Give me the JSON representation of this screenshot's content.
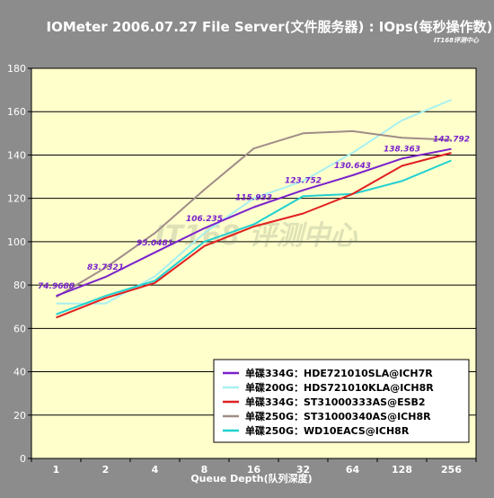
{
  "chart_data": {
    "type": "line",
    "title": "IOMeter 2006.07.27 File Server(文件服务器) : IOps(每秒操作数)",
    "xlabel": "Queue Depth(队列深度)",
    "ylabel": "",
    "categories": [
      "1",
      "2",
      "4",
      "8",
      "16",
      "32",
      "64",
      "128",
      "256"
    ],
    "ylim": [
      0,
      180
    ],
    "yticks": [
      0,
      20,
      40,
      60,
      80,
      100,
      120,
      140,
      160,
      180
    ],
    "grid": "horizontal",
    "legend_position": "bottom-right",
    "series": [
      {
        "name": "单碟334G：HDE721010SLA@ICH7R",
        "color": "#7a22cc",
        "values": [
          74.9688,
          83.7321,
          95.0481,
          106.235,
          115.933,
          123.752,
          130.643,
          138.363,
          142.792
        ]
      },
      {
        "name": "单碟200G：HDS721010KLA@ICH8R",
        "color": "#a8f0f0",
        "values": [
          71.5,
          71.5,
          84,
          104,
          120,
          128,
          141,
          156,
          165.5
        ]
      },
      {
        "name": "单碟334G：ST31000333AS@ESB2",
        "color": "#e02020",
        "values": [
          65,
          74,
          81,
          98,
          107,
          113,
          122,
          135,
          141
        ]
      },
      {
        "name": "单碟250G：ST31000340AS@ICH8R",
        "color": "#a08c88",
        "values": [
          74.5,
          88,
          104,
          124,
          143,
          150,
          151,
          148,
          147
        ]
      },
      {
        "name": "单碟250G：WD10EACS@ICH8R",
        "color": "#20d0d0",
        "values": [
          66.5,
          75,
          82,
          100,
          108,
          121,
          122,
          128,
          137.5
        ]
      }
    ],
    "data_labels": {
      "series_index": 0,
      "texts": [
        "74.9688",
        "83.7321",
        "95.0481",
        "106.235",
        "115.933",
        "123.752",
        "130.643",
        "138.363",
        "142.792"
      ],
      "color": "#7a22cc"
    }
  },
  "watermark": {
    "corner": "IT168评测中心",
    "center": "IT168 评测中心"
  }
}
